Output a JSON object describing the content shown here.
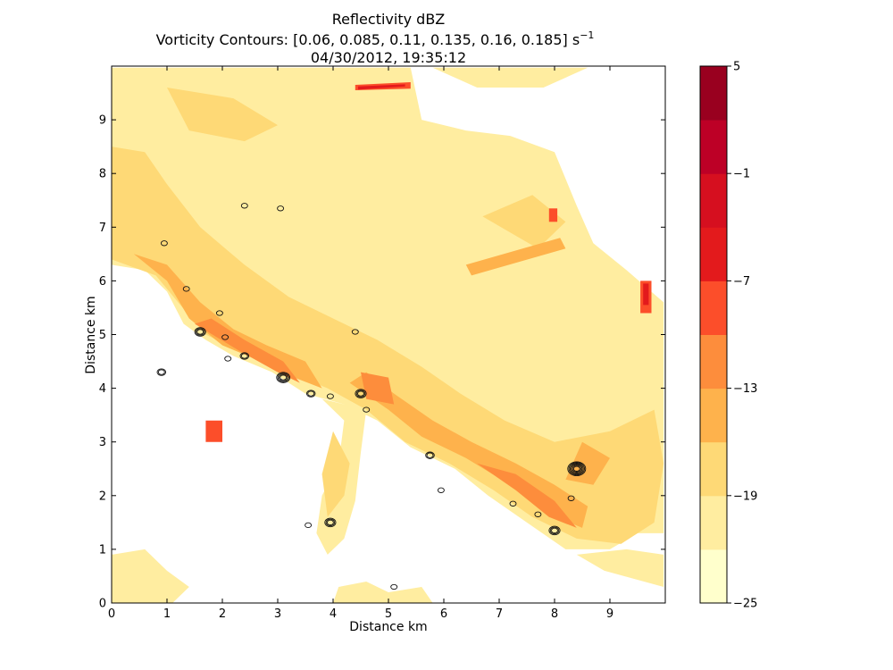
{
  "title": {
    "line1": "Reflectivity   dBZ",
    "line2": "Vorticity Contours:  [0.06, 0.085, 0.11, 0.135, 0.16, 0.185]   s",
    "line2_superscript": "−1",
    "line3": "04/30/2012, 19:35:12"
  },
  "chart_data": {
    "type": "heatmap",
    "xlabel": "Distance   km",
    "ylabel": "Distance   km",
    "xlim": [
      0,
      10
    ],
    "ylim": [
      0,
      10
    ],
    "x_ticks": [
      "0",
      "1",
      "2",
      "3",
      "4",
      "5",
      "6",
      "7",
      "8",
      "9"
    ],
    "y_ticks": [
      "0",
      "1",
      "2",
      "3",
      "4",
      "5",
      "6",
      "7",
      "8",
      "9"
    ],
    "grid": false,
    "contour_levels": [
      0.06,
      0.085,
      0.11,
      0.135,
      0.16,
      0.185
    ],
    "colorbar": {
      "range": [
        -25,
        5
      ],
      "boundaries": [
        -25,
        -22,
        -19,
        -16,
        -13,
        -10,
        -7,
        -4,
        -1,
        2,
        5
      ],
      "colors": [
        "#ffffcc",
        "#ffeda0",
        "#fed976",
        "#feb24c",
        "#fd8d3c",
        "#fc4e2a",
        "#e31a1c",
        "#d60f1f",
        "#bd0026",
        "#99001f"
      ],
      "tick_labels": [
        "5",
        "−1",
        "−7",
        "−13",
        "−19",
        "−25"
      ],
      "tick_values": [
        5,
        -1,
        -7,
        -13,
        -19,
        -25
      ]
    },
    "echo_regions": [
      {
        "level": -22,
        "polygon": [
          [
            0,
            10
          ],
          [
            0,
            6.3
          ],
          [
            0.6,
            6.2
          ],
          [
            1.0,
            5.8
          ],
          [
            1.3,
            5.2
          ],
          [
            1.7,
            4.9
          ],
          [
            2.2,
            4.6
          ],
          [
            2.9,
            4.3
          ],
          [
            3.5,
            3.9
          ],
          [
            4.2,
            3.7
          ],
          [
            4.8,
            3.4
          ],
          [
            5.4,
            2.9
          ],
          [
            6.2,
            2.5
          ],
          [
            6.8,
            2.0
          ],
          [
            7.5,
            1.5
          ],
          [
            8.2,
            1.0
          ],
          [
            9.0,
            1.0
          ],
          [
            9.5,
            1.3
          ],
          [
            9.97,
            1.3
          ],
          [
            9.97,
            5.6
          ],
          [
            9.3,
            6.2
          ],
          [
            8.7,
            6.7
          ],
          [
            8.4,
            7.4
          ],
          [
            8.0,
            8.4
          ],
          [
            7.2,
            8.7
          ],
          [
            6.4,
            8.8
          ],
          [
            5.6,
            9.0
          ],
          [
            5.4,
            9.97
          ],
          [
            0,
            9.97
          ]
        ]
      },
      {
        "level": -22,
        "polygon": [
          [
            5.8,
            9.97
          ],
          [
            6.6,
            9.6
          ],
          [
            7.8,
            9.6
          ],
          [
            8.6,
            9.97
          ]
        ]
      },
      {
        "level": -22,
        "polygon": [
          [
            3.8,
            3.8
          ],
          [
            4.2,
            3.4
          ],
          [
            4.1,
            2.6
          ],
          [
            3.8,
            2.0
          ],
          [
            3.7,
            1.3
          ],
          [
            3.9,
            0.9
          ],
          [
            4.2,
            1.2
          ],
          [
            4.4,
            1.9
          ],
          [
            4.5,
            2.8
          ],
          [
            4.6,
            3.6
          ]
        ]
      },
      {
        "level": -22,
        "polygon": [
          [
            0,
            0
          ],
          [
            0,
            0.9
          ],
          [
            0.6,
            1.0
          ],
          [
            1.0,
            0.6
          ],
          [
            1.4,
            0.3
          ],
          [
            1.1,
            0
          ]
        ]
      },
      {
        "level": -22,
        "polygon": [
          [
            4.0,
            0
          ],
          [
            4.1,
            0.3
          ],
          [
            4.6,
            0.4
          ],
          [
            5.0,
            0.2
          ],
          [
            5.6,
            0.3
          ],
          [
            5.8,
            0
          ]
        ]
      },
      {
        "level": -22,
        "polygon": [
          [
            8.4,
            0.9
          ],
          [
            8.9,
            0.6
          ],
          [
            9.97,
            0.3
          ],
          [
            9.97,
            0.9
          ],
          [
            9.3,
            1.0
          ]
        ]
      },
      {
        "level": -19,
        "polygon": [
          [
            0,
            8.5
          ],
          [
            0,
            6.4
          ],
          [
            0.8,
            6.1
          ],
          [
            1.2,
            5.6
          ],
          [
            1.7,
            5.0
          ],
          [
            2.5,
            4.6
          ],
          [
            3.2,
            4.3
          ],
          [
            3.9,
            4.0
          ],
          [
            4.6,
            3.6
          ],
          [
            5.3,
            3.0
          ],
          [
            6.1,
            2.6
          ],
          [
            6.9,
            2.1
          ],
          [
            7.6,
            1.6
          ],
          [
            8.4,
            1.2
          ],
          [
            9.2,
            1.1
          ],
          [
            9.8,
            1.5
          ],
          [
            9.97,
            2.6
          ],
          [
            9.8,
            3.6
          ],
          [
            9.0,
            3.2
          ],
          [
            8.0,
            3.0
          ],
          [
            7.1,
            3.4
          ],
          [
            6.3,
            3.9
          ],
          [
            5.6,
            4.4
          ],
          [
            4.8,
            4.9
          ],
          [
            4.0,
            5.3
          ],
          [
            3.2,
            5.7
          ],
          [
            2.4,
            6.3
          ],
          [
            1.6,
            7.0
          ],
          [
            1.0,
            7.8
          ],
          [
            0.6,
            8.4
          ]
        ]
      },
      {
        "level": -19,
        "polygon": [
          [
            1.0,
            9.6
          ],
          [
            2.2,
            9.4
          ],
          [
            3.0,
            8.9
          ],
          [
            2.4,
            8.6
          ],
          [
            1.4,
            8.8
          ]
        ]
      },
      {
        "level": -19,
        "polygon": [
          [
            6.7,
            7.2
          ],
          [
            7.6,
            7.6
          ],
          [
            8.2,
            7.1
          ],
          [
            7.7,
            6.6
          ]
        ]
      },
      {
        "level": -19,
        "polygon": [
          [
            4.0,
            3.2
          ],
          [
            4.3,
            2.6
          ],
          [
            4.2,
            2.0
          ],
          [
            3.9,
            1.6
          ],
          [
            3.8,
            2.4
          ]
        ]
      },
      {
        "level": -16,
        "polygon": [
          [
            0.4,
            6.5
          ],
          [
            1.0,
            6.0
          ],
          [
            1.4,
            5.3
          ],
          [
            2.0,
            4.8
          ],
          [
            2.7,
            4.5
          ],
          [
            3.3,
            4.2
          ],
          [
            3.8,
            4.0
          ],
          [
            3.5,
            4.5
          ],
          [
            2.8,
            4.8
          ],
          [
            2.2,
            5.1
          ],
          [
            1.6,
            5.6
          ],
          [
            1.0,
            6.3
          ]
        ]
      },
      {
        "level": -16,
        "polygon": [
          [
            4.3,
            4.1
          ],
          [
            5.0,
            3.6
          ],
          [
            5.6,
            3.1
          ],
          [
            6.4,
            2.7
          ],
          [
            7.2,
            2.2
          ],
          [
            7.8,
            1.7
          ],
          [
            8.5,
            1.4
          ],
          [
            8.6,
            1.8
          ],
          [
            8.0,
            2.2
          ],
          [
            7.3,
            2.6
          ],
          [
            6.5,
            3.0
          ],
          [
            5.8,
            3.4
          ],
          [
            5.1,
            3.9
          ],
          [
            4.6,
            4.3
          ]
        ]
      },
      {
        "level": -16,
        "polygon": [
          [
            8.2,
            2.3
          ],
          [
            8.7,
            2.2
          ],
          [
            9.0,
            2.7
          ],
          [
            8.5,
            3.0
          ]
        ]
      },
      {
        "level": -16,
        "polygon": [
          [
            6.5,
            6.1
          ],
          [
            8.2,
            6.6
          ],
          [
            8.1,
            6.8
          ],
          [
            6.4,
            6.3
          ]
        ]
      },
      {
        "level": -13,
        "polygon": [
          [
            1.5,
            5.2
          ],
          [
            2.3,
            4.7
          ],
          [
            3.0,
            4.3
          ],
          [
            3.4,
            4.1
          ],
          [
            3.1,
            4.5
          ],
          [
            2.4,
            4.9
          ],
          [
            1.8,
            5.3
          ]
        ]
      },
      {
        "level": -13,
        "polygon": [
          [
            6.6,
            2.6
          ],
          [
            7.3,
            2.1
          ],
          [
            7.9,
            1.6
          ],
          [
            8.4,
            1.4
          ],
          [
            8.0,
            1.9
          ],
          [
            7.3,
            2.4
          ]
        ]
      },
      {
        "level": -13,
        "polygon": [
          [
            4.6,
            3.8
          ],
          [
            5.1,
            3.7
          ],
          [
            5.0,
            4.2
          ],
          [
            4.5,
            4.3
          ]
        ]
      },
      {
        "level": -10,
        "polygon": [
          [
            4.4,
            9.55
          ],
          [
            5.4,
            9.58
          ],
          [
            5.4,
            9.7
          ],
          [
            4.4,
            9.65
          ]
        ]
      },
      {
        "level": -10,
        "polygon": [
          [
            9.55,
            6.0
          ],
          [
            9.75,
            6.0
          ],
          [
            9.75,
            5.4
          ],
          [
            9.55,
            5.4
          ]
        ]
      },
      {
        "level": -10,
        "polygon": [
          [
            1.7,
            3.4
          ],
          [
            2.0,
            3.4
          ],
          [
            2.0,
            3.0
          ],
          [
            1.7,
            3.0
          ]
        ]
      },
      {
        "level": -10,
        "polygon": [
          [
            7.9,
            7.35
          ],
          [
            8.05,
            7.35
          ],
          [
            8.05,
            7.1
          ],
          [
            7.9,
            7.1
          ]
        ]
      },
      {
        "level": -7,
        "polygon": [
          [
            4.45,
            9.56
          ],
          [
            5.3,
            9.62
          ],
          [
            5.3,
            9.66
          ],
          [
            4.45,
            9.62
          ]
        ]
      },
      {
        "level": -7,
        "polygon": [
          [
            9.6,
            5.95
          ],
          [
            9.7,
            5.95
          ],
          [
            9.7,
            5.55
          ],
          [
            9.6,
            5.55
          ]
        ]
      }
    ],
    "vorticity_centers": [
      {
        "x": 2.4,
        "y": 7.4,
        "n": 1
      },
      {
        "x": 3.05,
        "y": 7.35,
        "n": 1
      },
      {
        "x": 0.95,
        "y": 6.7,
        "n": 1
      },
      {
        "x": 1.35,
        "y": 5.85,
        "n": 1
      },
      {
        "x": 1.95,
        "y": 5.4,
        "n": 1
      },
      {
        "x": 1.6,
        "y": 5.05,
        "n": 3
      },
      {
        "x": 2.05,
        "y": 4.95,
        "n": 1
      },
      {
        "x": 2.4,
        "y": 4.6,
        "n": 2
      },
      {
        "x": 2.1,
        "y": 4.55,
        "n": 1
      },
      {
        "x": 0.9,
        "y": 4.3,
        "n": 2
      },
      {
        "x": 3.1,
        "y": 4.2,
        "n": 4
      },
      {
        "x": 3.6,
        "y": 3.9,
        "n": 2
      },
      {
        "x": 3.95,
        "y": 3.85,
        "n": 1
      },
      {
        "x": 4.5,
        "y": 3.9,
        "n": 3
      },
      {
        "x": 4.6,
        "y": 3.6,
        "n": 1
      },
      {
        "x": 5.75,
        "y": 2.75,
        "n": 2
      },
      {
        "x": 5.95,
        "y": 2.1,
        "n": 1
      },
      {
        "x": 7.25,
        "y": 1.85,
        "n": 1
      },
      {
        "x": 7.7,
        "y": 1.65,
        "n": 1
      },
      {
        "x": 8.4,
        "y": 2.5,
        "n": 6
      },
      {
        "x": 8.3,
        "y": 1.95,
        "n": 1
      },
      {
        "x": 8.0,
        "y": 1.35,
        "n": 3
      },
      {
        "x": 3.95,
        "y": 1.5,
        "n": 3
      },
      {
        "x": 3.55,
        "y": 1.45,
        "n": 1
      },
      {
        "x": 5.1,
        "y": 0.3,
        "n": 1
      },
      {
        "x": 4.4,
        "y": 5.05,
        "n": 1
      }
    ]
  }
}
